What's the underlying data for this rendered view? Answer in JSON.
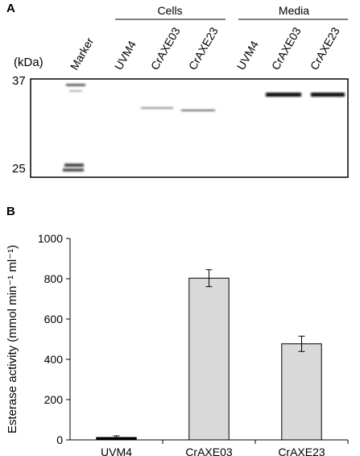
{
  "panel_a": {
    "label": "A",
    "group_labels": [
      "Cells",
      "Media"
    ],
    "lane_labels": [
      "Marker",
      "UVM4",
      "CrAXE03",
      "CrAXE23",
      "UVM4",
      "CrAXE03",
      "CrAXE23"
    ],
    "kda_unit": "(kDa)",
    "kda_markers": [
      "37",
      "25"
    ]
  },
  "panel_b": {
    "label": "B"
  },
  "chart_data": {
    "type": "bar",
    "title": "",
    "xlabel": "",
    "ylabel": "Esterase activity (mmol min⁻¹ ml⁻¹)",
    "ylim": [
      0,
      1000
    ],
    "yticks": [
      0,
      200,
      400,
      600,
      800,
      1000
    ],
    "categories": [
      "UVM4",
      "CrAXE03",
      "CrAXE23"
    ],
    "values": [
      12,
      803,
      477
    ],
    "errors": [
      8,
      42,
      38
    ],
    "colors": {
      "UVM4": "#000000",
      "CrAXE03": "#d9d9d9",
      "CrAXE23": "#d9d9d9"
    },
    "grid": false
  }
}
